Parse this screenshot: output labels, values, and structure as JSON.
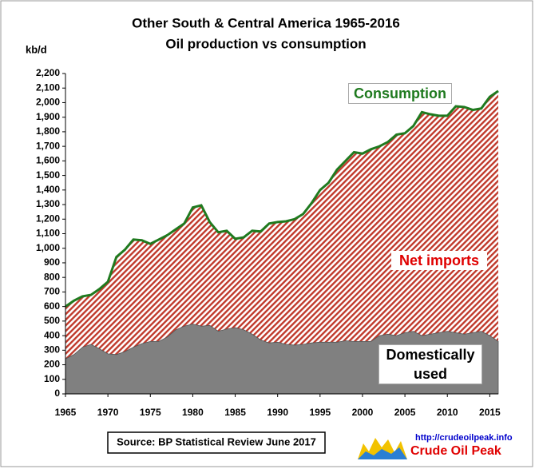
{
  "chart_data": {
    "type": "area",
    "title": "Other South & Central America 1965-2016",
    "subtitle": "Oil production vs consumption",
    "ylabel": "kb/d",
    "x": [
      1965,
      1966,
      1967,
      1968,
      1969,
      1970,
      1971,
      1972,
      1973,
      1974,
      1975,
      1976,
      1977,
      1978,
      1979,
      1980,
      1981,
      1982,
      1983,
      1984,
      1985,
      1986,
      1987,
      1988,
      1989,
      1990,
      1991,
      1992,
      1993,
      1994,
      1995,
      1996,
      1997,
      1998,
      1999,
      2000,
      2001,
      2002,
      2003,
      2004,
      2005,
      2006,
      2007,
      2008,
      2009,
      2010,
      2011,
      2012,
      2013,
      2014,
      2015,
      2016
    ],
    "series": [
      {
        "name": "Consumption",
        "color": "#1f7a1f",
        "fill": "#c0392b",
        "values": [
          600,
          640,
          670,
          680,
          720,
          770,
          940,
          990,
          1060,
          1055,
          1030,
          1060,
          1090,
          1130,
          1170,
          1280,
          1295,
          1180,
          1110,
          1120,
          1065,
          1075,
          1120,
          1115,
          1170,
          1180,
          1185,
          1200,
          1235,
          1310,
          1400,
          1450,
          1540,
          1600,
          1660,
          1650,
          1680,
          1700,
          1730,
          1780,
          1790,
          1840,
          1935,
          1920,
          1910,
          1910,
          1975,
          1970,
          1950,
          1960,
          2040,
          2080
        ]
      },
      {
        "name": "Domestically used",
        "color": "#808080",
        "values": [
          240,
          270,
          320,
          340,
          310,
          275,
          270,
          290,
          320,
          345,
          360,
          360,
          390,
          440,
          465,
          480,
          465,
          470,
          430,
          445,
          455,
          440,
          410,
          370,
          350,
          355,
          340,
          335,
          340,
          350,
          355,
          355,
          355,
          365,
          360,
          360,
          360,
          400,
          410,
          400,
          420,
          430,
          400,
          410,
          420,
          430,
          420,
          410,
          420,
          430,
          400,
          360
        ]
      }
    ],
    "net_label": "Net imports",
    "net_color": "#e00000",
    "xlim": [
      1965,
      2016
    ],
    "xticks": [
      1965,
      1970,
      1975,
      1980,
      1985,
      1990,
      1995,
      2000,
      2005,
      2010,
      2015
    ],
    "ylim": [
      0,
      2200
    ],
    "yticks": [
      0,
      100,
      200,
      300,
      400,
      500,
      600,
      700,
      800,
      900,
      {
        "value": 1000,
        "label": "1,000"
      },
      {
        "value": 1100,
        "label": "1,100"
      },
      {
        "value": 1200,
        "label": "1,200"
      },
      {
        "value": 1300,
        "label": "1,300"
      },
      {
        "value": 1400,
        "label": "1,400"
      },
      {
        "value": 1500,
        "label": "1,500"
      },
      {
        "value": 1600,
        "label": "1,600"
      },
      {
        "value": 1700,
        "label": "1,700"
      },
      {
        "value": 1800,
        "label": "1,800"
      },
      {
        "value": 1900,
        "label": "1,900"
      },
      {
        "value": 2000,
        "label": "2,000"
      },
      {
        "value": 2100,
        "label": "2,100"
      },
      {
        "value": 2200,
        "label": "2,200"
      }
    ],
    "source": "Source: BP Statistical Review  June 2017",
    "logo_url": "http://crudeoilpeak.info",
    "logo_text": "Crude Oil Peak"
  }
}
